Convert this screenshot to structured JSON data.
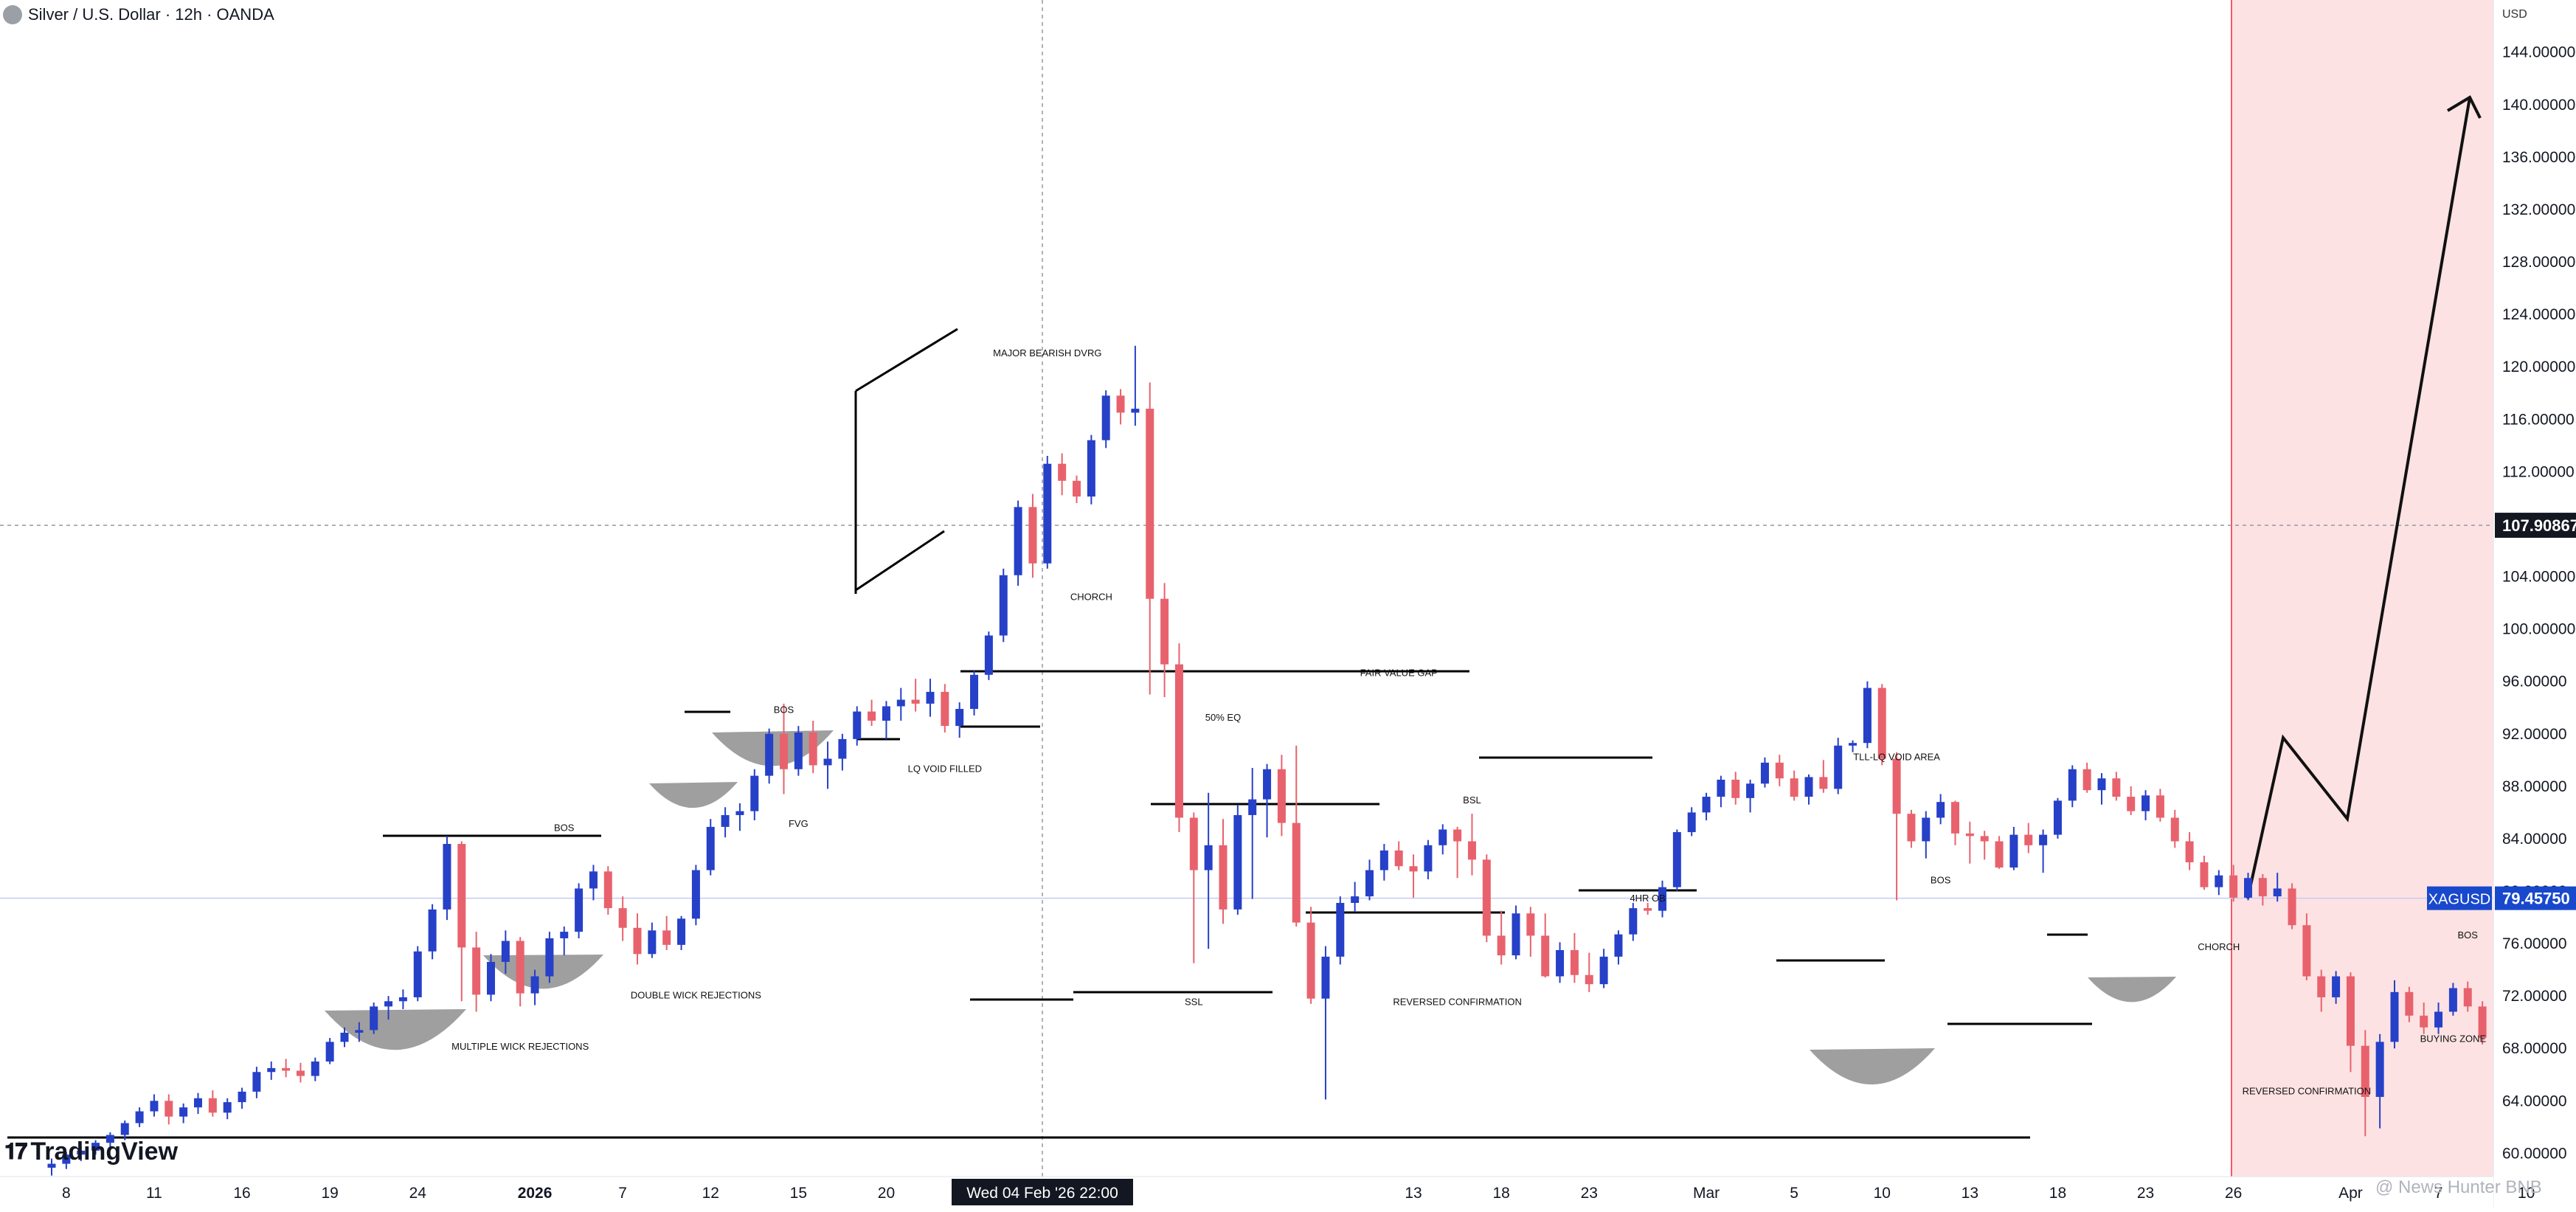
{
  "header": {
    "symbol_title": "Silver / U.S. Dollar · 12h · OANDA"
  },
  "watermark": {
    "brand": "TradingView",
    "credit": "@ News Hunter BNB"
  },
  "colors": {
    "bull": "#2640c8",
    "bear": "#e8626d",
    "zone_fill": "#fde2e3",
    "zone_edge": "#f05a66",
    "price_label_bg": "#1848cc",
    "crosshair_label_bg": "#131722",
    "shade": "#8e8e8e",
    "annotation": "#000000"
  },
  "chart_data": {
    "type": "candlestick",
    "title": "Silver / U.S. Dollar · 12h · OANDA",
    "currency_label": "USD",
    "symbol": "XAGUSD",
    "last_price": "79.45750",
    "crosshair_price": "107.90867",
    "crosshair_time": "Wed 04 Feb '26   22:00",
    "ylim": [
      57.5,
      147.0
    ],
    "y_ticks": [
      "144.00000",
      "140.00000",
      "136.00000",
      "132.00000",
      "128.00000",
      "124.00000",
      "120.00000",
      "116.00000",
      "112.00000",
      "108.00000",
      "104.00000",
      "100.00000",
      "96.00000",
      "92.00000",
      "88.00000",
      "84.00000",
      "80.00000",
      "76.00000",
      "72.00000",
      "68.00000",
      "64.00000",
      "60.00000"
    ],
    "x_ticks": [
      {
        "label": "8",
        "idx": 1
      },
      {
        "label": "11",
        "idx": 7
      },
      {
        "label": "16",
        "idx": 13
      },
      {
        "label": "19",
        "idx": 19
      },
      {
        "label": "24",
        "idx": 25
      },
      {
        "label": "2026",
        "idx": 33,
        "bold": true
      },
      {
        "label": "7",
        "idx": 39
      },
      {
        "label": "12",
        "idx": 45
      },
      {
        "label": "15",
        "idx": 51
      },
      {
        "label": "20",
        "idx": 57
      },
      {
        "label": "23",
        "idx": 63
      },
      {
        "label": "13",
        "idx": 93
      },
      {
        "label": "18",
        "idx": 99
      },
      {
        "label": "23",
        "idx": 105
      },
      {
        "label": "Mar",
        "idx": 113
      },
      {
        "label": "5",
        "idx": 119
      },
      {
        "label": "10",
        "idx": 125
      },
      {
        "label": "13",
        "idx": 131
      },
      {
        "label": "18",
        "idx": 137
      },
      {
        "label": "23",
        "idx": 143
      },
      {
        "label": "26",
        "idx": 149
      },
      {
        "label": "Apr",
        "idx": 157
      },
      {
        "label": "7",
        "idx": 163
      },
      {
        "label": "10",
        "idx": 169
      }
    ],
    "candles_ohlc": [
      [
        58.9,
        59.6,
        58.3,
        59.2
      ],
      [
        59.2,
        60.1,
        58.8,
        59.9
      ],
      [
        59.9,
        60.5,
        59.4,
        60.2
      ],
      [
        60.2,
        61.0,
        59.9,
        60.8
      ],
      [
        60.8,
        61.6,
        60.3,
        61.4
      ],
      [
        61.4,
        62.5,
        61.0,
        62.3
      ],
      [
        62.3,
        63.5,
        62.0,
        63.2
      ],
      [
        63.2,
        64.5,
        62.8,
        64.0
      ],
      [
        64.0,
        64.5,
        62.2,
        62.8
      ],
      [
        62.8,
        63.8,
        62.3,
        63.5
      ],
      [
        63.5,
        64.6,
        63.0,
        64.2
      ],
      [
        64.2,
        64.8,
        62.8,
        63.1
      ],
      [
        63.1,
        64.2,
        62.6,
        63.9
      ],
      [
        63.9,
        65.0,
        63.4,
        64.7
      ],
      [
        64.7,
        66.6,
        64.2,
        66.2
      ],
      [
        66.2,
        67.0,
        65.6,
        66.5
      ],
      [
        66.5,
        67.2,
        65.8,
        66.3
      ],
      [
        66.3,
        66.9,
        65.4,
        65.9
      ],
      [
        65.9,
        67.3,
        65.5,
        67.0
      ],
      [
        67.0,
        68.8,
        66.8,
        68.5
      ],
      [
        68.5,
        69.6,
        68.1,
        69.2
      ],
      [
        69.2,
        70.0,
        68.5,
        69.4
      ],
      [
        69.4,
        71.5,
        69.1,
        71.2
      ],
      [
        71.2,
        72.0,
        70.2,
        71.6
      ],
      [
        71.6,
        72.5,
        71.0,
        71.9
      ],
      [
        71.9,
        75.8,
        71.6,
        75.4
      ],
      [
        75.4,
        79.0,
        74.8,
        78.6
      ],
      [
        78.6,
        84.2,
        77.8,
        83.6
      ],
      [
        83.6,
        83.8,
        71.6,
        75.7
      ],
      [
        75.7,
        76.9,
        70.8,
        72.1
      ],
      [
        72.1,
        75.2,
        71.6,
        74.6
      ],
      [
        74.6,
        77.0,
        73.7,
        76.2
      ],
      [
        76.2,
        76.5,
        71.2,
        72.2
      ],
      [
        72.2,
        74.0,
        71.3,
        73.5
      ],
      [
        73.5,
        76.9,
        73.0,
        76.4
      ],
      [
        76.4,
        77.3,
        75.1,
        76.9
      ],
      [
        76.9,
        80.6,
        76.4,
        80.2
      ],
      [
        80.2,
        82.0,
        79.3,
        81.5
      ],
      [
        81.5,
        81.9,
        78.2,
        78.7
      ],
      [
        78.7,
        79.6,
        76.2,
        77.2
      ],
      [
        77.2,
        78.3,
        74.4,
        75.2
      ],
      [
        75.2,
        77.6,
        74.9,
        77.0
      ],
      [
        77.0,
        78.1,
        75.5,
        75.9
      ],
      [
        75.9,
        78.1,
        75.5,
        77.9
      ],
      [
        77.9,
        82.0,
        77.4,
        81.6
      ],
      [
        81.6,
        85.5,
        81.2,
        84.9
      ],
      [
        84.9,
        86.4,
        84.1,
        85.8
      ],
      [
        85.8,
        86.7,
        84.6,
        86.1
      ],
      [
        86.1,
        89.3,
        85.4,
        88.8
      ],
      [
        88.8,
        92.4,
        88.2,
        92.0
      ],
      [
        92.0,
        94.3,
        87.4,
        89.3
      ],
      [
        89.3,
        92.6,
        88.8,
        92.1
      ],
      [
        92.1,
        93.0,
        89.0,
        89.6
      ],
      [
        89.6,
        91.4,
        87.8,
        90.1
      ],
      [
        90.1,
        92.0,
        89.2,
        91.6
      ],
      [
        91.6,
        94.1,
        91.1,
        93.7
      ],
      [
        93.7,
        94.6,
        92.6,
        93.0
      ],
      [
        93.0,
        94.5,
        91.6,
        94.1
      ],
      [
        94.1,
        95.5,
        93.0,
        94.6
      ],
      [
        94.6,
        96.2,
        93.7,
        94.3
      ],
      [
        94.3,
        96.2,
        93.3,
        95.2
      ],
      [
        95.2,
        95.8,
        92.1,
        92.6
      ],
      [
        92.6,
        94.4,
        91.7,
        93.9
      ],
      [
        93.9,
        96.8,
        93.4,
        96.5
      ],
      [
        96.5,
        99.8,
        96.1,
        99.5
      ],
      [
        99.5,
        104.6,
        99.0,
        104.1
      ],
      [
        104.1,
        109.8,
        103.3,
        109.3
      ],
      [
        109.3,
        110.3,
        103.9,
        105.0
      ],
      [
        105.0,
        113.2,
        104.6,
        112.6
      ],
      [
        112.6,
        113.4,
        110.2,
        111.3
      ],
      [
        111.3,
        111.7,
        109.6,
        110.1
      ],
      [
        110.1,
        114.8,
        109.5,
        114.4
      ],
      [
        114.4,
        118.2,
        113.8,
        117.8
      ],
      [
        117.8,
        118.3,
        115.6,
        116.5
      ],
      [
        116.5,
        121.6,
        115.5,
        116.8
      ],
      [
        116.8,
        118.8,
        95.0,
        102.3
      ],
      [
        102.3,
        103.5,
        94.8,
        97.3
      ],
      [
        97.3,
        98.9,
        84.5,
        85.6
      ],
      [
        85.6,
        86.0,
        74.5,
        81.6
      ],
      [
        81.6,
        87.5,
        75.6,
        83.5
      ],
      [
        83.5,
        85.5,
        77.5,
        78.6
      ],
      [
        78.6,
        86.6,
        78.2,
        85.8
      ],
      [
        85.8,
        89.4,
        79.4,
        87.0
      ],
      [
        87.0,
        89.7,
        84.1,
        89.3
      ],
      [
        89.3,
        90.4,
        84.2,
        85.2
      ],
      [
        85.2,
        91.1,
        77.3,
        77.6
      ],
      [
        77.6,
        78.8,
        71.4,
        71.8
      ],
      [
        71.8,
        75.8,
        64.1,
        75.0
      ],
      [
        75.0,
        79.6,
        74.4,
        79.1
      ],
      [
        79.1,
        80.7,
        78.4,
        79.6
      ],
      [
        79.6,
        82.4,
        79.3,
        81.6
      ],
      [
        81.6,
        83.6,
        80.8,
        83.1
      ],
      [
        83.1,
        83.8,
        81.6,
        81.9
      ],
      [
        81.9,
        82.8,
        79.5,
        81.5
      ],
      [
        81.5,
        83.9,
        80.9,
        83.5
      ],
      [
        83.5,
        85.1,
        82.8,
        84.7
      ],
      [
        84.7,
        84.9,
        81.0,
        83.8
      ],
      [
        83.8,
        85.9,
        81.2,
        82.4
      ],
      [
        82.4,
        82.8,
        76.1,
        76.6
      ],
      [
        76.6,
        78.5,
        74.4,
        75.1
      ],
      [
        75.1,
        78.9,
        74.8,
        78.3
      ],
      [
        78.3,
        78.8,
        75.0,
        76.6
      ],
      [
        76.6,
        78.3,
        73.4,
        73.5
      ],
      [
        73.5,
        76.1,
        73.0,
        75.5
      ],
      [
        75.5,
        76.8,
        73.0,
        73.6
      ],
      [
        73.6,
        75.3,
        72.3,
        72.9
      ],
      [
        72.9,
        75.6,
        72.6,
        75.0
      ],
      [
        75.0,
        77.0,
        74.4,
        76.7
      ],
      [
        76.7,
        79.1,
        76.2,
        78.7
      ],
      [
        78.7,
        79.1,
        78.2,
        78.5
      ],
      [
        78.5,
        80.8,
        78.0,
        80.3
      ],
      [
        80.3,
        84.7,
        80.0,
        84.5
      ],
      [
        84.5,
        86.4,
        84.2,
        86.0
      ],
      [
        86.0,
        87.5,
        85.4,
        87.2
      ],
      [
        87.2,
        88.8,
        86.4,
        88.5
      ],
      [
        88.5,
        89.1,
        86.6,
        87.1
      ],
      [
        87.1,
        88.5,
        86.0,
        88.2
      ],
      [
        88.2,
        90.2,
        87.9,
        89.8
      ],
      [
        89.8,
        90.4,
        88.0,
        88.6
      ],
      [
        88.6,
        89.2,
        86.9,
        87.2
      ],
      [
        87.2,
        88.9,
        86.6,
        88.7
      ],
      [
        88.7,
        90.0,
        87.5,
        87.8
      ],
      [
        87.8,
        91.7,
        87.4,
        91.1
      ],
      [
        91.1,
        91.5,
        90.6,
        91.3
      ],
      [
        91.3,
        96.0,
        90.9,
        95.5
      ],
      [
        95.5,
        95.8,
        89.6,
        90.1
      ],
      [
        90.1,
        90.6,
        79.3,
        85.9
      ],
      [
        85.9,
        86.2,
        83.3,
        83.8
      ],
      [
        83.8,
        86.1,
        82.5,
        85.6
      ],
      [
        85.6,
        87.4,
        85.1,
        86.8
      ],
      [
        86.8,
        86.9,
        83.5,
        84.4
      ],
      [
        84.4,
        85.3,
        82.1,
        84.2
      ],
      [
        84.2,
        84.6,
        82.4,
        83.8
      ],
      [
        83.8,
        84.2,
        81.7,
        81.8
      ],
      [
        81.8,
        84.9,
        81.6,
        84.3
      ],
      [
        84.3,
        85.2,
        82.9,
        83.5
      ],
      [
        83.5,
        84.7,
        81.4,
        84.3
      ],
      [
        84.3,
        87.1,
        84.0,
        86.9
      ],
      [
        86.9,
        89.6,
        86.4,
        89.3
      ],
      [
        89.3,
        89.8,
        87.5,
        87.7
      ],
      [
        87.7,
        89.0,
        86.6,
        88.6
      ],
      [
        88.6,
        89.1,
        86.9,
        87.2
      ],
      [
        87.2,
        88.0,
        85.8,
        86.1
      ],
      [
        86.1,
        87.7,
        85.4,
        87.3
      ],
      [
        87.3,
        87.8,
        85.3,
        85.6
      ],
      [
        85.6,
        86.2,
        83.3,
        83.8
      ],
      [
        83.8,
        84.5,
        81.6,
        82.2
      ],
      [
        82.2,
        82.7,
        80.1,
        80.3
      ],
      [
        80.3,
        81.6,
        79.7,
        81.2
      ],
      [
        81.2,
        82.0,
        79.2,
        79.5
      ],
      [
        79.5,
        81.4,
        79.3,
        81.0
      ],
      [
        81.0,
        81.3,
        78.9,
        79.6
      ],
      [
        79.6,
        81.4,
        79.2,
        80.2
      ],
      [
        80.2,
        80.6,
        77.1,
        77.4
      ],
      [
        77.4,
        78.3,
        73.2,
        73.5
      ],
      [
        73.5,
        74.0,
        70.8,
        71.9
      ],
      [
        71.9,
        73.9,
        71.4,
        73.5
      ],
      [
        73.5,
        73.8,
        66.2,
        68.2
      ],
      [
        68.2,
        69.4,
        61.3,
        64.3
      ],
      [
        64.3,
        69.1,
        61.9,
        68.5
      ],
      [
        68.5,
        73.2,
        68.0,
        72.3
      ],
      [
        72.3,
        72.7,
        70.0,
        70.5
      ],
      [
        70.5,
        71.5,
        69.1,
        69.6
      ],
      [
        69.6,
        71.5,
        69.1,
        70.8
      ],
      [
        70.8,
        73.0,
        70.5,
        72.6
      ],
      [
        72.6,
        73.1,
        70.8,
        71.2
      ],
      [
        71.2,
        71.6,
        68.3,
        68.8
      ],
      [
        68.8,
        69.2,
        66.9,
        68.7
      ],
      [
        68.7,
        70.7,
        68.3,
        70.3
      ],
      [
        70.3,
        72.2,
        69.8,
        71.8
      ],
      [
        71.8,
        73.1,
        71.3,
        72.5
      ],
      [
        72.5,
        75.2,
        72.1,
        74.8
      ],
      [
        74.8,
        75.6,
        73.9,
        75.1
      ],
      [
        75.1,
        75.5,
        72.3,
        72.6
      ],
      [
        72.6,
        74.4,
        72.1,
        74.2
      ],
      [
        74.2,
        74.6,
        73.5,
        73.9
      ],
      [
        73.9,
        75.3,
        73.4,
        74.9
      ],
      [
        74.9,
        76.0,
        73.8,
        74.1
      ],
      [
        74.1,
        74.6,
        70.0,
        70.5
      ],
      [
        70.5,
        72.8,
        70.2,
        72.4
      ],
      [
        72.4,
        73.3,
        71.9,
        72.8
      ],
      [
        72.8,
        73.6,
        71.4,
        71.7
      ],
      [
        71.7,
        73.1,
        71.2,
        72.9
      ],
      [
        72.9,
        73.4,
        72.2,
        72.7
      ],
      [
        72.7,
        72.9,
        71.1,
        72.5
      ],
      [
        72.5,
        75.9,
        72.1,
        75.4
      ],
      [
        75.4,
        76.7,
        74.9,
        76.3
      ],
      [
        76.3,
        76.8,
        74.2,
        74.5
      ],
      [
        74.5,
        76.0,
        74.1,
        75.6
      ],
      [
        75.6,
        76.4,
        74.8,
        76.1
      ],
      [
        76.1,
        77.1,
        75.5,
        76.7
      ],
      [
        76.7,
        77.1,
        74.3,
        74.6
      ],
      [
        74.6,
        76.1,
        74.3,
        75.9
      ],
      [
        75.9,
        77.1,
        75.5,
        76.8
      ],
      [
        76.8,
        78.8,
        76.5,
        78.5
      ],
      [
        78.5,
        80.5,
        78.2,
        80.0
      ],
      [
        80.0,
        80.6,
        79.4,
        79.6
      ],
      [
        79.6,
        80.7,
        79.2,
        79.5
      ]
    ],
    "annotations": [
      {
        "text": "MAJOR BEARISH DVRG",
        "i": 68,
        "p": 120.8
      },
      {
        "text": "CHORCH",
        "i": 71,
        "p": 102.2
      },
      {
        "text": "BOS",
        "i": 50,
        "p": 93.6
      },
      {
        "text": "LQ VOID FILLED",
        "i": 61,
        "p": 89.1
      },
      {
        "text": "FVG",
        "i": 51,
        "p": 84.9
      },
      {
        "text": "BOS",
        "i": 35,
        "p": 84.6
      },
      {
        "text": "DOUBLE WICK REJECTIONS",
        "i": 44,
        "p": 71.8
      },
      {
        "text": "MULTIPLE WICK REJECTIONS",
        "i": 32,
        "p": 67.9
      },
      {
        "text": "FAIR VALUE GAP",
        "i": 92,
        "p": 96.4
      },
      {
        "text": "50% EQ",
        "i": 80,
        "p": 93.0
      },
      {
        "text": "BSL",
        "i": 97,
        "p": 86.7
      },
      {
        "text": "4HR OB",
        "i": 109,
        "p": 79.2
      },
      {
        "text": "SSL",
        "i": 78,
        "p": 71.3
      },
      {
        "text": "REVERSED CONFIRMATION",
        "i": 96,
        "p": 71.3
      },
      {
        "text": "TLL-LQ VOID AREA",
        "i": 126,
        "p": 90.0
      },
      {
        "text": "BOS",
        "i": 129,
        "p": 80.6
      },
      {
        "text": "CHORCH",
        "i": 148,
        "p": 75.5
      },
      {
        "text": "REVERSED CONFIRMATION",
        "i": 154,
        "p": 64.5
      },
      {
        "text": "BOS",
        "i": 165,
        "p": 76.4
      },
      {
        "text": "BUYING ZONE",
        "i": 164,
        "p": 68.5
      }
    ]
  }
}
